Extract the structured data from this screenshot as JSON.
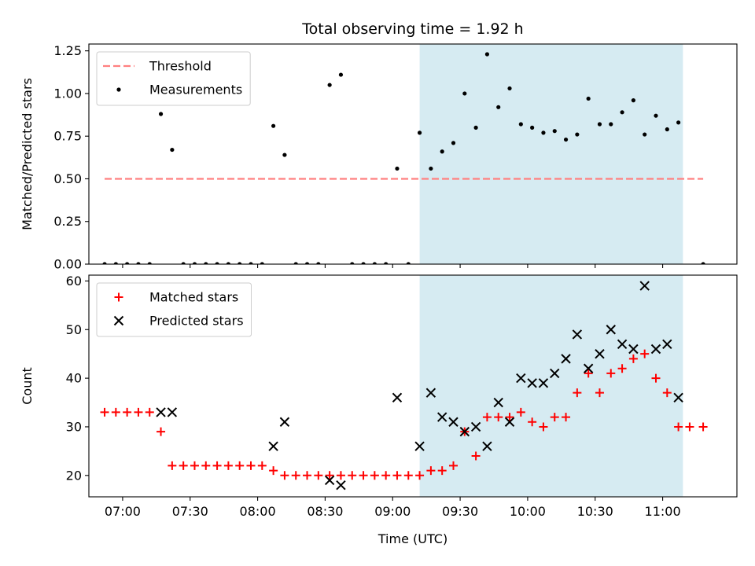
{
  "chart_data": [
    {
      "type": "scatter",
      "title": "Total observing time = 1.92 h",
      "ylabel": "Matched/Predicted stars",
      "xlim": [
        "06:45",
        "11:33"
      ],
      "ylim": [
        0,
        1.29
      ],
      "xticks": [
        "07:00",
        "07:30",
        "08:00",
        "08:30",
        "09:00",
        "09:30",
        "10:00",
        "10:30",
        "11:00"
      ],
      "yticks": [
        "0.00",
        "0.25",
        "0.50",
        "0.75",
        "1.00",
        "1.25"
      ],
      "legend_position": "top-left",
      "shaded_region": {
        "x": [
          "09:12",
          "11:09"
        ],
        "color": "#add8e6"
      },
      "threshold": {
        "name": "Threshold",
        "y": 0.5,
        "x": [
          "06:52",
          "11:18"
        ],
        "color": "#ff8080",
        "style": "dashed"
      },
      "series": [
        {
          "name": "Measurements",
          "color": "#000000",
          "marker": "dot",
          "x": [
            "06:52",
            "06:57",
            "07:02",
            "07:07",
            "07:12",
            "07:17",
            "07:22",
            "07:27",
            "07:32",
            "07:37",
            "07:42",
            "07:47",
            "07:52",
            "07:57",
            "08:02",
            "08:07",
            "08:12",
            "08:17",
            "08:22",
            "08:27",
            "08:32",
            "08:37",
            "08:42",
            "08:47",
            "08:52",
            "08:57",
            "09:02",
            "09:07",
            "09:12",
            "09:17",
            "09:22",
            "09:27",
            "09:32",
            "09:37",
            "09:42",
            "09:47",
            "09:52",
            "09:57",
            "10:02",
            "10:07",
            "10:12",
            "10:17",
            "10:22",
            "10:27",
            "10:32",
            "10:37",
            "10:42",
            "10:47",
            "10:52",
            "10:57",
            "11:02",
            "11:07",
            "11:18"
          ],
          "y": [
            0,
            0,
            0,
            0,
            0,
            0.88,
            0.67,
            0,
            0,
            0,
            0,
            0,
            0,
            0,
            0,
            0.81,
            0.64,
            0,
            0,
            0,
            1.05,
            1.11,
            0,
            0,
            0,
            0,
            0.56,
            0,
            0.77,
            0.56,
            0.66,
            0.71,
            1.0,
            0.8,
            1.23,
            0.92,
            1.03,
            0.82,
            0.8,
            0.77,
            0.78,
            0.73,
            0.76,
            0.97,
            0.82,
            0.82,
            0.89,
            0.96,
            0.76,
            0.87,
            0.79,
            0.83,
            0
          ]
        }
      ]
    },
    {
      "type": "scatter",
      "xlabel": "Time (UTC)",
      "ylabel": "Count",
      "xlim": [
        "06:45",
        "11:33"
      ],
      "ylim": [
        15.6,
        61.2
      ],
      "xticks": [
        "07:00",
        "07:30",
        "08:00",
        "08:30",
        "09:00",
        "09:30",
        "10:00",
        "10:30",
        "11:00"
      ],
      "yticks": [
        "20",
        "30",
        "40",
        "50",
        "60"
      ],
      "legend_position": "top-left",
      "shaded_region": {
        "x": [
          "09:12",
          "11:09"
        ],
        "color": "#add8e6"
      },
      "series": [
        {
          "name": "Matched stars",
          "color": "#ff0000",
          "marker": "plus",
          "x": [
            "06:52",
            "06:57",
            "07:02",
            "07:07",
            "07:12",
            "07:17",
            "07:22",
            "07:27",
            "07:32",
            "07:37",
            "07:42",
            "07:47",
            "07:52",
            "07:57",
            "08:02",
            "08:07",
            "08:12",
            "08:17",
            "08:22",
            "08:27",
            "08:32",
            "08:37",
            "08:42",
            "08:47",
            "08:52",
            "08:57",
            "09:02",
            "09:07",
            "09:12",
            "09:17",
            "09:22",
            "09:27",
            "09:32",
            "09:37",
            "09:42",
            "09:47",
            "09:52",
            "09:57",
            "10:02",
            "10:07",
            "10:12",
            "10:17",
            "10:22",
            "10:27",
            "10:32",
            "10:37",
            "10:42",
            "10:47",
            "10:52",
            "10:57",
            "11:02",
            "11:07",
            "11:12",
            "11:18"
          ],
          "y": [
            33,
            33,
            33,
            33,
            33,
            29,
            22,
            22,
            22,
            22,
            22,
            22,
            22,
            22,
            22,
            21,
            20,
            20,
            20,
            20,
            20,
            20,
            20,
            20,
            20,
            20,
            20,
            20,
            20,
            21,
            21,
            22,
            29,
            24,
            32,
            32,
            32,
            33,
            31,
            30,
            32,
            32,
            37,
            41,
            37,
            41,
            42,
            44,
            45,
            40,
            37,
            30,
            30,
            30
          ]
        },
        {
          "name": "Predicted stars",
          "color": "#000000",
          "marker": "x",
          "x": [
            "07:17",
            "07:22",
            "08:07",
            "08:12",
            "08:32",
            "08:37",
            "09:02",
            "09:12",
            "09:17",
            "09:22",
            "09:27",
            "09:32",
            "09:37",
            "09:42",
            "09:47",
            "09:52",
            "09:57",
            "10:02",
            "10:07",
            "10:12",
            "10:17",
            "10:22",
            "10:27",
            "10:32",
            "10:37",
            "10:42",
            "10:47",
            "10:52",
            "10:57",
            "11:02",
            "11:07"
          ],
          "y": [
            33,
            33,
            26,
            31,
            19,
            18,
            36,
            26,
            37,
            32,
            31,
            29,
            30,
            26,
            35,
            31,
            40,
            39,
            39,
            41,
            44,
            49,
            42,
            45,
            50,
            47,
            46,
            59,
            46,
            47,
            36
          ]
        }
      ]
    }
  ]
}
